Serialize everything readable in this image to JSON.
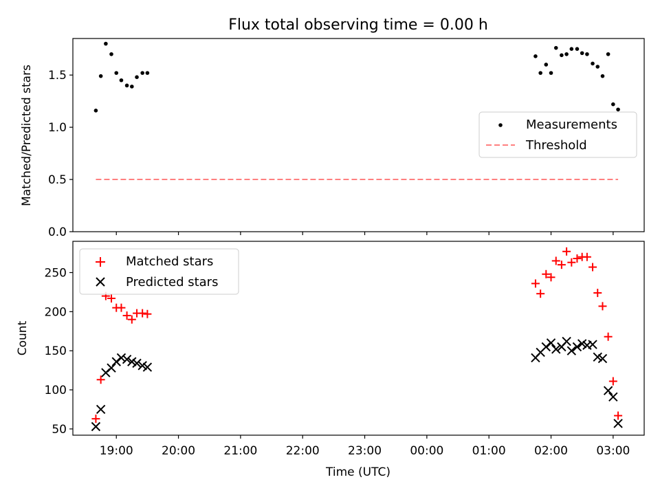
{
  "chart_data": {
    "title": "Flux total observing time = 0.00 h",
    "x_axis": {
      "label": "Time (UTC)",
      "tick_labels": [
        "19:00",
        "20:00",
        "21:00",
        "22:00",
        "23:00",
        "00:00",
        "01:00",
        "02:00",
        "03:00"
      ],
      "tick_values_hours": [
        19,
        20,
        21,
        22,
        23,
        24,
        25,
        26,
        27
      ],
      "xlim_hours": [
        18.3,
        27.5
      ]
    },
    "panels": [
      {
        "type": "scatter",
        "ylabel": "Matched/Predicted stars",
        "ylim": [
          0,
          1.85
        ],
        "yticks": [
          0,
          0.5,
          1.0,
          1.5
        ],
        "ytick_labels": [
          "0.0",
          "0.5",
          "1.0",
          "1.5"
        ],
        "legend": {
          "position": "right",
          "entries": [
            "Measurements",
            "Threshold"
          ]
        },
        "series": [
          {
            "name": "Measurements",
            "kind": "points",
            "color": "#000000",
            "x": [
              18.67,
              18.75,
              18.83,
              18.92,
              19.0,
              19.08,
              19.17,
              19.25,
              19.33,
              19.42,
              19.5,
              25.75,
              25.83,
              25.92,
              26.0,
              26.08,
              26.17,
              26.25,
              26.33,
              26.42,
              26.5,
              26.58,
              26.67,
              26.75,
              26.83,
              26.92,
              27.0,
              27.08
            ],
            "y": [
              1.16,
              1.49,
              1.8,
              1.7,
              1.52,
              1.45,
              1.4,
              1.39,
              1.48,
              1.52,
              1.52,
              1.68,
              1.52,
              1.6,
              1.52,
              1.76,
              1.69,
              1.7,
              1.75,
              1.75,
              1.71,
              1.7,
              1.61,
              1.58,
              1.49,
              1.7,
              1.22,
              1.17
            ]
          },
          {
            "name": "Threshold",
            "kind": "dashed-line",
            "color": "#ff7f7f",
            "x": [
              18.67,
              27.08
            ],
            "y": [
              0.5,
              0.5
            ]
          }
        ]
      },
      {
        "type": "scatter",
        "ylabel": "Count",
        "ylim": [
          42,
          290
        ],
        "yticks": [
          50,
          100,
          150,
          200,
          250
        ],
        "ytick_labels": [
          "50",
          "100",
          "150",
          "200",
          "250"
        ],
        "legend": {
          "position": "upper-left",
          "entries": [
            "Matched stars",
            "Predicted stars"
          ]
        },
        "series": [
          {
            "name": "Matched stars",
            "marker": "plus",
            "color": "#ff0000",
            "x": [
              18.67,
              18.75,
              18.83,
              18.92,
              19.0,
              19.08,
              19.17,
              19.25,
              19.33,
              19.42,
              19.5,
              25.75,
              25.83,
              25.92,
              26.0,
              26.08,
              26.17,
              26.25,
              26.33,
              26.42,
              26.5,
              26.58,
              26.67,
              26.75,
              26.83,
              26.92,
              27.0,
              27.08
            ],
            "y": [
              63,
              113,
              220,
              217,
              205,
              205,
              195,
              190,
              198,
              198,
              197,
              236,
              223,
              248,
              244,
              265,
              260,
              277,
              263,
              268,
              270,
              270,
              257,
              224,
              207,
              168,
              111,
              67
            ]
          },
          {
            "name": "Predicted stars",
            "marker": "x",
            "color": "#000000",
            "x": [
              18.67,
              18.75,
              18.83,
              18.92,
              19.0,
              19.08,
              19.17,
              19.25,
              19.33,
              19.42,
              19.5,
              25.75,
              25.83,
              25.92,
              26.0,
              26.08,
              26.17,
              26.25,
              26.33,
              26.42,
              26.5,
              26.58,
              26.67,
              26.75,
              26.83,
              26.92,
              27.0,
              27.08
            ],
            "y": [
              53,
              75,
              122,
              128,
              136,
              141,
              139,
              136,
              134,
              131,
              129,
              141,
              148,
              155,
              160,
              152,
              155,
              162,
              150,
              155,
              159,
              157,
              158,
              142,
              140,
              99,
              91,
              57
            ]
          }
        ]
      }
    ]
  }
}
